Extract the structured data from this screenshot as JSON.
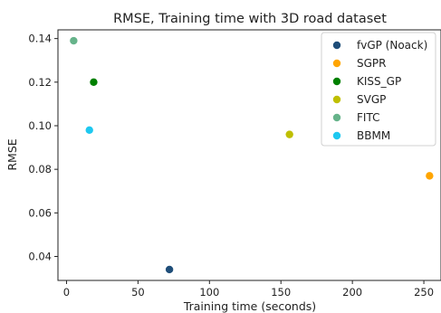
{
  "chart_data": {
    "type": "scatter",
    "title": "RMSE, Training time with 3D road dataset",
    "xlabel": "Training time (seconds)",
    "ylabel": "RMSE",
    "xlim": [
      -6,
      262
    ],
    "ylim": [
      0.029,
      0.144
    ],
    "xticks": [
      0,
      50,
      100,
      150,
      200,
      250
    ],
    "yticks": [
      0.04,
      0.06,
      0.08,
      0.1,
      0.12,
      0.14
    ],
    "ytick_labels": [
      "0.04",
      "0.06",
      "0.08",
      "0.10",
      "0.12",
      "0.14"
    ],
    "grid": false,
    "legend_position": "top-right",
    "series": [
      {
        "name": "fvGP (Noack)",
        "color": "#1f4e79",
        "x": [
          72
        ],
        "y": [
          0.034
        ]
      },
      {
        "name": "SGPR",
        "color": "#ffa500",
        "x": [
          254
        ],
        "y": [
          0.077
        ]
      },
      {
        "name": "KISS_GP",
        "color": "#008000",
        "x": [
          19
        ],
        "y": [
          0.12
        ]
      },
      {
        "name": "SVGP",
        "color": "#bfbf00",
        "x": [
          156
        ],
        "y": [
          0.096
        ]
      },
      {
        "name": "FITC",
        "color": "#66b38a",
        "x": [
          5
        ],
        "y": [
          0.139
        ]
      },
      {
        "name": "BBMM",
        "color": "#1ec8f0",
        "x": [
          16
        ],
        "y": [
          0.098
        ]
      }
    ]
  }
}
